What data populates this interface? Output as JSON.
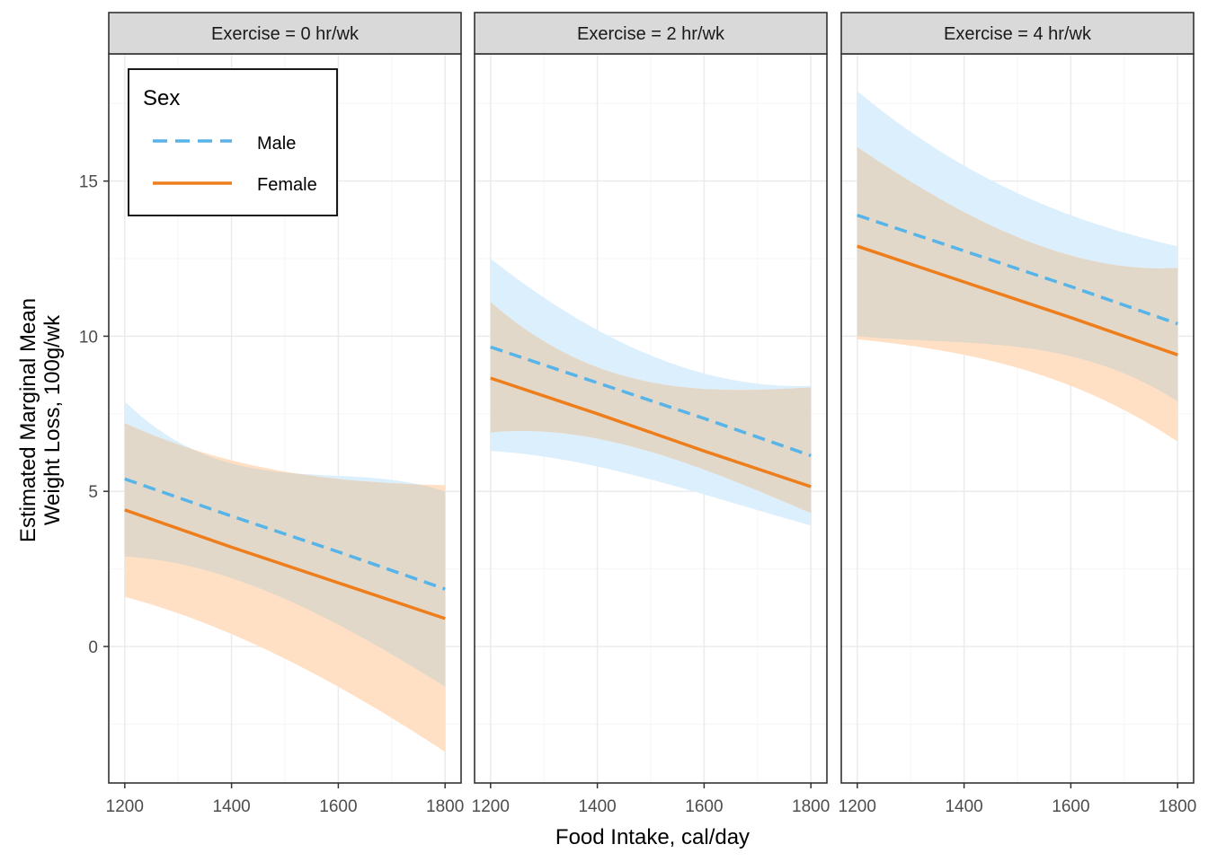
{
  "chart_data": {
    "type": "line",
    "xlabel": "Food Intake, cal/day",
    "ylabel_lines": [
      "Estimated Marginal Mean",
      "Weight Loss, 100g/wk"
    ],
    "x_ticks": [
      1200,
      1400,
      1600,
      1800
    ],
    "y_ticks": [
      0,
      5,
      10,
      15
    ],
    "xlim": [
      1170,
      1830
    ],
    "ylim": [
      -4.4,
      19.1
    ],
    "grid": true,
    "legend": {
      "title": "Sex",
      "position": "top-left",
      "entries": [
        {
          "name": "Male",
          "style": "dashed"
        },
        {
          "name": "Female",
          "style": "solid"
        }
      ]
    },
    "colors": {
      "male_line": "#56B4E9",
      "male_ribbon": "#DCEFFC",
      "female_line": "#EE7D1B",
      "female_ribbon": "#FFE0C4",
      "overlap_ribbon": "#E2D8CA",
      "strip_fill": "#D9D9D9",
      "grid_major": "#EBEBEB",
      "grid_minor": "#F5F5F5"
    },
    "panels": [
      {
        "strip": "Exercise = 0 hr/wk",
        "x": [
          1200,
          1400,
          1600,
          1800
        ],
        "series": [
          {
            "name": "Male",
            "fit": [
              5.4,
              4.2,
              3.05,
              1.85
            ],
            "lower": [
              2.9,
              2.2,
              0.7,
              -1.3
            ],
            "upper": [
              7.9,
              5.9,
              5.5,
              5.0
            ]
          },
          {
            "name": "Female",
            "fit": [
              4.4,
              3.2,
              2.05,
              0.9
            ],
            "lower": [
              1.6,
              0.4,
              -1.3,
              -3.4
            ],
            "upper": [
              7.2,
              6.0,
              5.4,
              5.2
            ]
          }
        ]
      },
      {
        "strip": "Exercise = 2 hr/wk",
        "x": [
          1200,
          1400,
          1600,
          1800
        ],
        "series": [
          {
            "name": "Male",
            "fit": [
              9.65,
              8.5,
              7.35,
              6.15
            ],
            "lower": [
              6.3,
              5.8,
              4.9,
              3.9
            ],
            "upper": [
              12.5,
              10.2,
              8.8,
              8.4
            ]
          },
          {
            "name": "Female",
            "fit": [
              8.65,
              7.5,
              6.3,
              5.15
            ],
            "lower": [
              6.9,
              6.7,
              5.7,
              4.3
            ],
            "upper": [
              11.1,
              9.0,
              8.3,
              8.35
            ]
          }
        ]
      },
      {
        "strip": "Exercise = 4 hr/wk",
        "x": [
          1200,
          1400,
          1600,
          1800
        ],
        "series": [
          {
            "name": "Male",
            "fit": [
              13.9,
              12.75,
              11.6,
              10.4
            ],
            "lower": [
              10.0,
              9.8,
              9.35,
              7.9
            ],
            "upper": [
              17.9,
              15.5,
              13.9,
              12.9
            ]
          },
          {
            "name": "Female",
            "fit": [
              12.9,
              11.75,
              10.6,
              9.4
            ],
            "lower": [
              9.9,
              9.4,
              8.4,
              6.6
            ],
            "upper": [
              16.1,
              14.0,
              12.6,
              12.2
            ]
          }
        ]
      }
    ]
  }
}
